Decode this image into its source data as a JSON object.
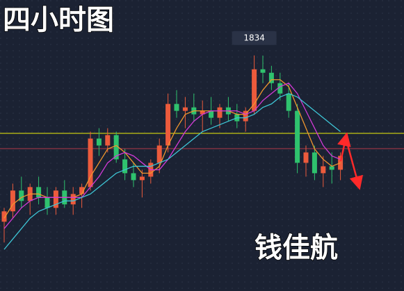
{
  "chart_data": {
    "type": "candlestick",
    "title": "四小时图",
    "signature": "钱佳航",
    "ylim": [
      1766,
      1850
    ],
    "up_color": "#ec5b3c",
    "down_color": "#2fc26e",
    "ohlc": [
      [
        1786,
        1790,
        1780,
        1789
      ],
      [
        1789,
        1797,
        1787,
        1795
      ],
      [
        1795,
        1799,
        1790,
        1792
      ],
      [
        1792,
        1797,
        1788,
        1796
      ],
      [
        1796,
        1799,
        1791,
        1793
      ],
      [
        1793,
        1796,
        1788,
        1790
      ],
      [
        1790,
        1796,
        1788,
        1795
      ],
      [
        1795,
        1798,
        1790,
        1791
      ],
      [
        1791,
        1796,
        1788,
        1794
      ],
      [
        1794,
        1797,
        1790,
        1796
      ],
      [
        1796,
        1812,
        1795,
        1810
      ],
      [
        1810,
        1813,
        1805,
        1808
      ],
      [
        1808,
        1813,
        1806,
        1811
      ],
      [
        1811,
        1812,
        1803,
        1804
      ],
      [
        1804,
        1807,
        1798,
        1800
      ],
      [
        1800,
        1803,
        1796,
        1798
      ],
      [
        1798,
        1801,
        1793,
        1799
      ],
      [
        1799,
        1804,
        1797,
        1803
      ],
      [
        1803,
        1810,
        1800,
        1808
      ],
      [
        1808,
        1823,
        1806,
        1820
      ],
      [
        1820,
        1824,
        1816,
        1818
      ],
      [
        1818,
        1822,
        1813,
        1819
      ],
      [
        1819,
        1823,
        1815,
        1817
      ],
      [
        1817,
        1821,
        1812,
        1818
      ],
      [
        1818,
        1822,
        1814,
        1816
      ],
      [
        1816,
        1820,
        1813,
        1819
      ],
      [
        1819,
        1822,
        1815,
        1817
      ],
      [
        1817,
        1820,
        1813,
        1815
      ],
      [
        1815,
        1819,
        1812,
        1818
      ],
      [
        1818,
        1834,
        1817,
        1830
      ],
      [
        1830,
        1833.96,
        1826,
        1829
      ],
      [
        1829,
        1831,
        1824,
        1826
      ],
      [
        1826,
        1829,
        1821,
        1823
      ],
      [
        1823,
        1826,
        1816,
        1818
      ],
      [
        1818,
        1820,
        1800,
        1803
      ],
      [
        1803,
        1808,
        1799,
        1806
      ],
      [
        1806,
        1808,
        1798,
        1800
      ],
      [
        1800,
        1805,
        1796,
        1802
      ],
      [
        1802,
        1806,
        1797,
        1801
      ],
      [
        1801,
        1806,
        1798,
        1805
      ]
    ],
    "series": [
      {
        "color": "#f0962e",
        "values": [
          1787,
          1791,
          1793,
          1794,
          1794,
          1793,
          1793,
          1793,
          1793,
          1794,
          1799,
          1803,
          1807,
          1808,
          1806,
          1803,
          1800,
          1800,
          1802,
          1808,
          1813,
          1817,
          1818,
          1818,
          1818,
          1818,
          1818,
          1817,
          1817,
          1820,
          1824,
          1827,
          1827,
          1825,
          1819,
          1813,
          1807,
          1804,
          1802,
          1803
        ]
      },
      {
        "color": "#d23ad6",
        "values": [
          1784,
          1787,
          1790,
          1792,
          1793,
          1793,
          1793,
          1793,
          1793,
          1793,
          1796,
          1799,
          1803,
          1805,
          1806,
          1805,
          1803,
          1801,
          1801,
          1804,
          1808,
          1812,
          1815,
          1817,
          1818,
          1818,
          1818,
          1818,
          1817,
          1818,
          1821,
          1823,
          1825,
          1826,
          1823,
          1818,
          1813,
          1808,
          1805,
          1804
        ]
      },
      {
        "color": "#3ec6d6",
        "values": [
          1778,
          1781,
          1784,
          1787,
          1789,
          1790,
          1791,
          1792,
          1792,
          1793,
          1794,
          1796,
          1798,
          1800,
          1801,
          1802,
          1802,
          1802,
          1803,
          1804,
          1806,
          1808,
          1810,
          1812,
          1813,
          1814,
          1815,
          1816,
          1816,
          1817,
          1819,
          1820,
          1822,
          1823,
          1822,
          1820,
          1818,
          1816,
          1814,
          1812
        ]
      }
    ],
    "hlines": [
      {
        "value": 1811.5,
        "color": "#f2f20a"
      },
      {
        "value": 1807.1,
        "color": "#b03a4a"
      }
    ]
  }
}
